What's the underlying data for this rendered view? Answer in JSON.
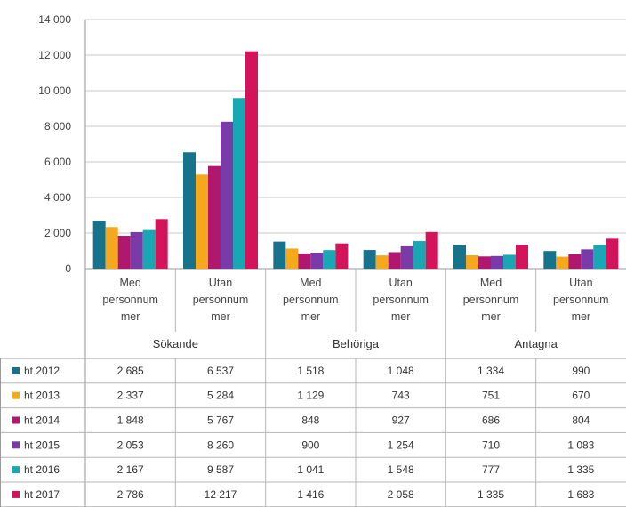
{
  "chart_data": {
    "type": "bar",
    "yticks": [
      "0",
      "2 000",
      "4 000",
      "6 000",
      "8 000",
      "10 000",
      "12 000",
      "14 000"
    ],
    "ylim": [
      0,
      14000
    ],
    "grid": true,
    "legend": "data-table-left",
    "groups": [
      {
        "label": "Sökande",
        "categories": [
          [
            "Med",
            "personnum",
            "mer"
          ],
          [
            "Utan",
            "personnum",
            "mer"
          ]
        ]
      },
      {
        "label": "Behöriga",
        "categories": [
          [
            "Med",
            "personnum",
            "mer"
          ],
          [
            "Utan",
            "personnum",
            "mer"
          ]
        ]
      },
      {
        "label": "Antagna",
        "categories": [
          [
            "Med",
            "personnum",
            "mer"
          ],
          [
            "Utan",
            "personnum",
            "mer"
          ]
        ]
      }
    ],
    "series": [
      {
        "name": "ht 2012",
        "color": "#17728c",
        "values": [
          2685,
          6537,
          1518,
          1048,
          1334,
          990
        ],
        "labels": [
          "2 685",
          "6 537",
          "1 518",
          "1 048",
          "1 334",
          "990"
        ]
      },
      {
        "name": "ht 2013",
        "color": "#f5a81c",
        "values": [
          2337,
          5284,
          1129,
          743,
          751,
          670
        ],
        "labels": [
          "2 337",
          "5 284",
          "1 129",
          "743",
          "751",
          "670"
        ]
      },
      {
        "name": "ht 2014",
        "color": "#b0176e",
        "values": [
          1848,
          5767,
          848,
          927,
          686,
          804
        ],
        "labels": [
          "1 848",
          "5 767",
          "848",
          "927",
          "686",
          "804"
        ]
      },
      {
        "name": "ht 2015",
        "color": "#7a3aa8",
        "values": [
          2053,
          8260,
          900,
          1254,
          710,
          1083
        ],
        "labels": [
          "2 053",
          "8 260",
          "900",
          "1 254",
          "710",
          "1 083"
        ]
      },
      {
        "name": "ht 2016",
        "color": "#19a7b3",
        "values": [
          2167,
          9587,
          1041,
          1548,
          777,
          1335
        ],
        "labels": [
          "2 167",
          "9 587",
          "1 041",
          "1 548",
          "777",
          "1 335"
        ]
      },
      {
        "name": "ht 2017",
        "color": "#d4145a",
        "values": [
          2786,
          12217,
          1416,
          2058,
          1335,
          1683
        ],
        "labels": [
          "2 786",
          "12 217",
          "1 416",
          "2 058",
          "1 335",
          "1 683"
        ]
      }
    ]
  }
}
